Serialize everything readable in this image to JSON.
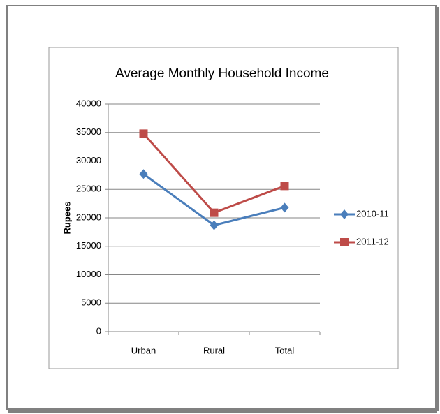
{
  "chart_data": {
    "type": "line",
    "title": "Average Monthly Household Income",
    "y_label": "Rupees",
    "categories": [
      "Urban",
      "Rural",
      "Total"
    ],
    "series": [
      {
        "name": "2010-11",
        "color": "#4a7ebb",
        "marker": "diamond",
        "values": [
          27700,
          18700,
          21800
        ]
      },
      {
        "name": "2011-12",
        "color": "#be4b48",
        "marker": "square",
        "values": [
          34800,
          20900,
          25600
        ]
      }
    ],
    "ylim": [
      0,
      40000
    ],
    "yticks": [
      0,
      5000,
      10000,
      15000,
      20000,
      25000,
      30000,
      35000,
      40000
    ],
    "grid": true,
    "legend": "right"
  }
}
